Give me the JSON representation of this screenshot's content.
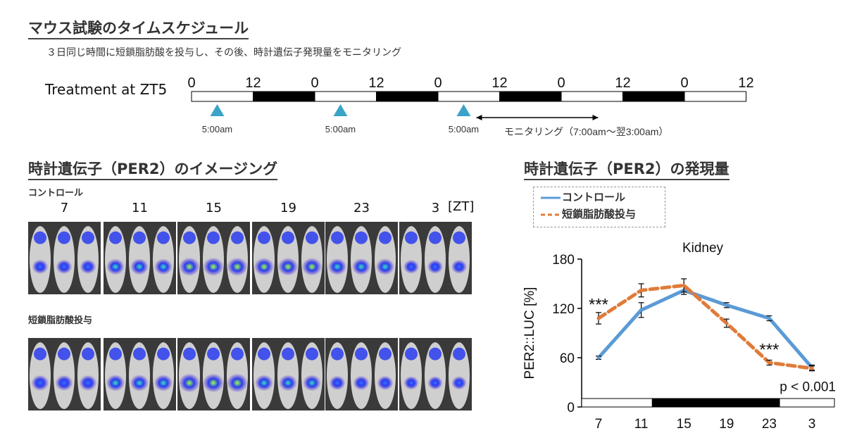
{
  "header": {
    "title": "マウス試験のタイムスケジュール",
    "subtitle": "３日同じ時間に短鎖脂肪酸を投与し、その後、時計遺伝子発現量をモニタリング"
  },
  "timeline": {
    "label": "Treatment at ZT5",
    "ticks": [
      "0",
      "12",
      "0",
      "12",
      "0",
      "12",
      "0",
      "12",
      "0",
      "12"
    ],
    "dose_labels": [
      "5:00am",
      "5:00am",
      "5:00am"
    ],
    "monitor_label": "モニタリング（7:00am〜翌3:00am）",
    "triangle_color": "#3aa3c8"
  },
  "imaging": {
    "title": "時計遺伝子（PER2）のイメージング",
    "control_label": "コントロール",
    "treated_label": "短鎖脂肪酸投与",
    "zt_labels": [
      "7",
      "11",
      "15",
      "19",
      "23",
      "3"
    ],
    "zt_unit": "[ZT]",
    "control_intensity": [
      0.35,
      0.55,
      0.8,
      0.75,
      0.6,
      0.3
    ],
    "treated_intensity": [
      0.5,
      0.6,
      0.85,
      0.55,
      0.35,
      0.25
    ]
  },
  "expression": {
    "title": "時計遺伝子（PER2）の発現量",
    "legend": [
      {
        "label": "コントロール",
        "color": "#5b9bd5",
        "style": "solid"
      },
      {
        "label": "短鎖脂肪酸投与",
        "color": "#e07b39",
        "style": "dashed"
      }
    ]
  },
  "chart_data": {
    "type": "line",
    "title": "Kidney",
    "ylabel": "PER2::LUC [%]",
    "xlabel": "",
    "x": [
      7,
      11,
      15,
      19,
      23,
      3
    ],
    "categories": [
      "7",
      "11",
      "15",
      "19",
      "23",
      "3"
    ],
    "ylim": [
      0,
      180
    ],
    "yticks": [
      0,
      60,
      120,
      180
    ],
    "series": [
      {
        "name": "コントロール",
        "values": [
          60,
          118,
          142,
          124,
          108,
          48
        ],
        "errors": [
          2,
          9,
          5,
          3,
          3,
          3
        ],
        "color": "#5b9bd5"
      },
      {
        "name": "短鎖脂肪酸投与",
        "values": [
          108,
          142,
          148,
          102,
          54,
          47
        ],
        "errors": [
          7,
          8,
          8,
          5,
          3,
          3
        ],
        "color": "#e07b39"
      }
    ],
    "annotations": [
      {
        "text": "***",
        "x": 7,
        "y": 123
      },
      {
        "text": "***",
        "x": 23,
        "y": 68
      },
      {
        "text": "p < 0.001",
        "x": 23,
        "y": 26
      }
    ],
    "grid": false
  }
}
